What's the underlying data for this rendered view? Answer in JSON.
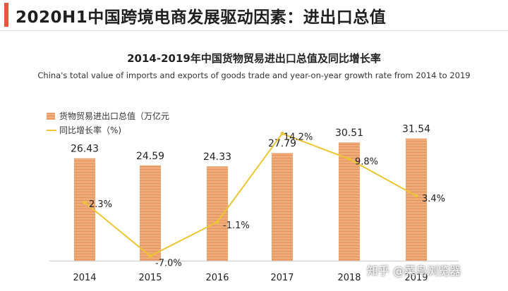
{
  "page": {
    "title": "2020H1中国跨境电商发展驱动因素：进出口总值",
    "watermark": "知乎 @菜鸟浏览器"
  },
  "colors": {
    "accent": "#e8573a",
    "bar": "#f0ab7a",
    "bar_stripe": "#e39157",
    "line": "#ecc532"
  },
  "chart_data": {
    "type": "bar",
    "title": "2014-2019年中国货物贸易进出口总值及同比增长率",
    "subtitle": "China's total value of imports and exports of goods trade and year-on-year growth rate from 2014 to 2019",
    "categories": [
      "2014",
      "2015",
      "2016",
      "2017",
      "2018",
      "2019"
    ],
    "series": [
      {
        "name": "货物贸易进出口总值（万亿元",
        "type": "bar",
        "values": [
          26.43,
          24.59,
          24.33,
          27.79,
          30.51,
          31.54
        ],
        "labels": [
          "26.43",
          "24.59",
          "24.33",
          "27.79",
          "30.51",
          "31.54"
        ]
      },
      {
        "name": "同比增长率（%)",
        "type": "line",
        "values": [
          2.3,
          -7.0,
          -1.1,
          14.2,
          9.8,
          3.4
        ],
        "labels": [
          "2.3%",
          "-7.0%",
          "-1.1%",
          "14.2%",
          "9.8%",
          "3.4%"
        ]
      }
    ],
    "legend_position": "top-left",
    "grid": false
  }
}
